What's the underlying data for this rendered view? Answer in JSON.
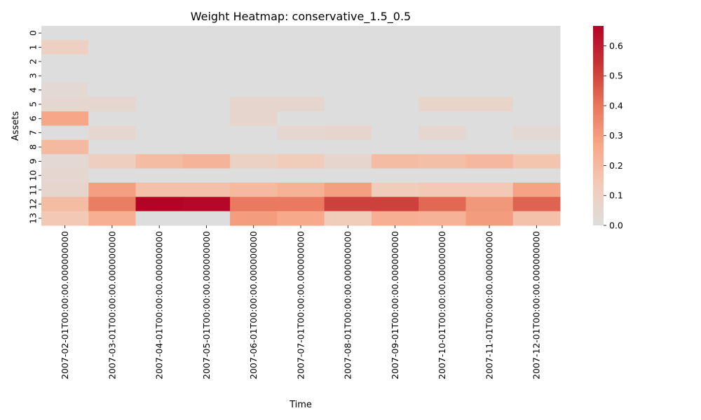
{
  "chart_data": {
    "type": "heatmap",
    "title": "Weight Heatmap: conservative_1.5_0.5",
    "xlabel": "Time",
    "ylabel": "Assets",
    "x_categories": [
      "2007-02-01T00:00:00.000000000",
      "2007-03-01T00:00:00.000000000",
      "2007-04-01T00:00:00.000000000",
      "2007-05-01T00:00:00.000000000",
      "2007-06-01T00:00:00.000000000",
      "2007-07-01T00:00:00.000000000",
      "2007-08-01T00:00:00.000000000",
      "2007-09-01T00:00:00.000000000",
      "2007-10-01T00:00:00.000000000",
      "2007-11-01T00:00:00.000000000",
      "2007-12-01T00:00:00.000000000"
    ],
    "y_categories": [
      "0",
      "1",
      "2",
      "3",
      "4",
      "5",
      "6",
      "7",
      "8",
      "9",
      "10",
      "11",
      "12",
      "13"
    ],
    "values": [
      [
        0.0,
        0.0,
        0.0,
        0.0,
        0.0,
        0.0,
        0.0,
        0.0,
        0.0,
        0.0,
        0.0
      ],
      [
        0.1,
        0.0,
        0.0,
        0.0,
        0.0,
        0.0,
        0.0,
        0.0,
        0.0,
        0.0,
        0.0
      ],
      [
        0.0,
        0.0,
        0.0,
        0.0,
        0.0,
        0.0,
        0.0,
        0.0,
        0.0,
        0.0,
        0.0
      ],
      [
        0.0,
        0.0,
        0.0,
        0.0,
        0.0,
        0.0,
        0.0,
        0.0,
        0.0,
        0.0,
        0.0
      ],
      [
        0.04,
        0.0,
        0.0,
        0.0,
        0.0,
        0.0,
        0.0,
        0.0,
        0.0,
        0.0,
        0.0
      ],
      [
        0.05,
        0.05,
        0.0,
        0.0,
        0.06,
        0.06,
        0.0,
        0.0,
        0.07,
        0.07,
        0.0
      ],
      [
        0.27,
        0.0,
        0.0,
        0.0,
        0.06,
        0.0,
        0.0,
        0.0,
        0.0,
        0.0,
        0.0
      ],
      [
        0.0,
        0.05,
        0.0,
        0.0,
        0.0,
        0.05,
        0.06,
        0.0,
        0.05,
        0.0,
        0.04
      ],
      [
        0.2,
        0.0,
        0.0,
        0.0,
        0.0,
        0.0,
        0.0,
        0.0,
        0.0,
        0.0,
        0.0
      ],
      [
        0.04,
        0.11,
        0.19,
        0.22,
        0.09,
        0.12,
        0.06,
        0.19,
        0.18,
        0.21,
        0.16
      ],
      [
        0.05,
        0.0,
        0.0,
        0.0,
        0.0,
        0.0,
        0.0,
        0.0,
        0.0,
        0.0,
        0.0
      ],
      [
        0.06,
        0.29,
        0.17,
        0.17,
        0.2,
        0.23,
        0.29,
        0.12,
        0.14,
        0.14,
        0.28
      ],
      [
        0.19,
        0.38,
        0.67,
        0.66,
        0.39,
        0.39,
        0.51,
        0.51,
        0.43,
        0.31,
        0.44
      ],
      [
        0.14,
        0.24,
        0.0,
        0.0,
        0.3,
        0.26,
        0.12,
        0.24,
        0.23,
        0.3,
        0.17
      ]
    ],
    "colorbar": {
      "min": 0.0,
      "max": 0.6667,
      "ticks": [
        0.0,
        0.1,
        0.2,
        0.3,
        0.4,
        0.5,
        0.6
      ],
      "tick_labels": [
        "0.0",
        "0.1",
        "0.2",
        "0.3",
        "0.4",
        "0.5",
        "0.6"
      ]
    },
    "colormap": {
      "name": "coolwarm (positive half)",
      "stops": [
        "#dddddd",
        "#f2cbb7",
        "#f7a889",
        "#e8765c",
        "#c73635",
        "#b40426"
      ]
    }
  }
}
